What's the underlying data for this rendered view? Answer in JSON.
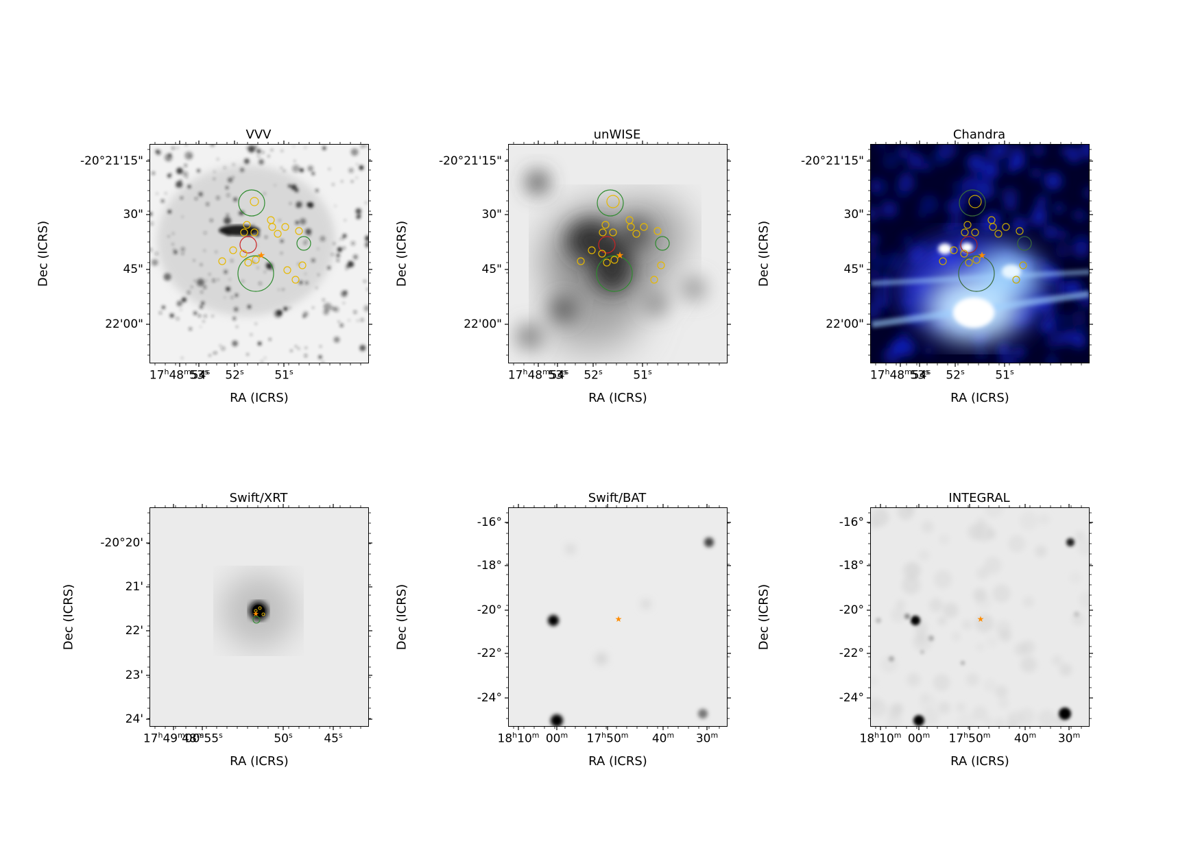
{
  "panels": [
    {
      "id": "vvv",
      "title": "VVV",
      "xlabel": "RA (ICRS)",
      "ylabel": "Dec (ICRS)",
      "yticks": [
        "-20°21'15\"",
        "30\"",
        "45\"",
        "22'00\""
      ],
      "xticks": [
        {
          "h": "17",
          "hu": "h",
          "m": "48",
          "mu": "m",
          "s": "54",
          "su": "s"
        },
        {
          "s": "53",
          "su": "s"
        },
        {
          "s": "52",
          "su": "s"
        },
        {
          "s": "51",
          "su": "s"
        }
      ]
    },
    {
      "id": "unwise",
      "title": "unWISE",
      "xlabel": "RA (ICRS)",
      "ylabel": "Dec (ICRS)",
      "yticks": [
        "-20°21'15\"",
        "30\"",
        "45\"",
        "22'00\""
      ],
      "xticks": [
        {
          "h": "17",
          "hu": "h",
          "m": "48",
          "mu": "m",
          "s": "54",
          "su": "s"
        },
        {
          "s": "53",
          "su": "s"
        },
        {
          "s": "52",
          "su": "s"
        },
        {
          "s": "51",
          "su": "s"
        }
      ]
    },
    {
      "id": "chandra",
      "title": "Chandra",
      "xlabel": "RA (ICRS)",
      "ylabel": "Dec (ICRS)",
      "yticks": [
        "-20°21'15\"",
        "30\"",
        "45\"",
        "22'00\""
      ],
      "xticks": [
        {
          "h": "17",
          "hu": "h",
          "m": "48",
          "mu": "m",
          "s": "54",
          "su": "s"
        },
        {
          "s": "53",
          "su": "s"
        },
        {
          "s": "52",
          "su": "s"
        },
        {
          "s": "51",
          "su": "s"
        }
      ]
    },
    {
      "id": "xrt",
      "title": "Swift/XRT",
      "xlabel": "RA (ICRS)",
      "ylabel": "Dec (ICRS)",
      "yticks": [
        "-20°20'",
        "21'",
        "22'",
        "23'",
        "24'"
      ],
      "xticks": [
        {
          "h": "17",
          "hu": "h",
          "m": "49",
          "mu": "m",
          "s": "00",
          "su": "s"
        },
        {
          "m": "48",
          "mu": "m",
          "s": "55",
          "su": "s"
        },
        {
          "s": "50",
          "su": "s"
        },
        {
          "s": "45",
          "su": "s"
        }
      ]
    },
    {
      "id": "bat",
      "title": "Swift/BAT",
      "xlabel": "RA (ICRS)",
      "ylabel": "Dec (ICRS)",
      "yticks": [
        "-16°",
        "-18°",
        "-20°",
        "-22°",
        "-24°"
      ],
      "xticks": [
        {
          "h": "18",
          "hu": "h",
          "m": "10",
          "mu": "m"
        },
        {
          "m": "00",
          "mu": "m"
        },
        {
          "h": "17",
          "hu": "h",
          "m": "50",
          "mu": "m"
        },
        {
          "m": "40",
          "mu": "m"
        },
        {
          "m": "30",
          "mu": "m"
        }
      ]
    },
    {
      "id": "integral",
      "title": "INTEGRAL",
      "xlabel": "RA (ICRS)",
      "ylabel": "Dec (ICRS)",
      "yticks": [
        "-16°",
        "-18°",
        "-20°",
        "-22°",
        "-24°"
      ],
      "xticks": [
        {
          "h": "18",
          "hu": "h",
          "m": "10",
          "mu": "m"
        },
        {
          "m": "00",
          "mu": "m"
        },
        {
          "h": "17",
          "hu": "h",
          "m": "50",
          "mu": "m"
        },
        {
          "m": "40",
          "mu": "m"
        },
        {
          "m": "30",
          "mu": "m"
        }
      ]
    }
  ],
  "colors": {
    "marker_star": "#ff8c00",
    "circle_yellow": "#e6b800",
    "circle_green": "#2e8b2e",
    "circle_red": "#cc2222",
    "chandra_blue": "#1a1aff"
  }
}
